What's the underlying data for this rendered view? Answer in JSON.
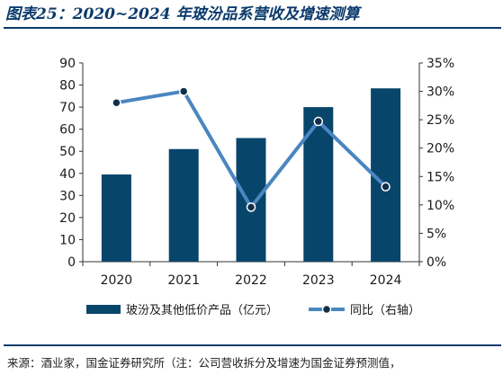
{
  "title": "图表25：2020~2024 年玻汾品系营收及增速测算",
  "source": "来源：酒业家，国金证券研究所（注：公司营收拆分及增速为国金证券预测值，",
  "colors": {
    "bar": "#08456b",
    "line": "#4a86c0",
    "marker": "#0f2f4a",
    "title": "#0b3a6b"
  },
  "chart_data": {
    "type": "bar",
    "categories": [
      "2020",
      "2021",
      "2022",
      "2023",
      "2024"
    ],
    "series": [
      {
        "name": "玻汾及其他低价产品（亿元）",
        "type": "bar",
        "axis": "left",
        "values": [
          39.5,
          51,
          56,
          70,
          78.5
        ]
      },
      {
        "name": "同比（右轴）",
        "type": "line",
        "axis": "right",
        "values": [
          28.0,
          30.0,
          9.6,
          24.7,
          13.2
        ]
      }
    ],
    "y_left": {
      "min": 0,
      "max": 90,
      "step": 10,
      "ticks": [
        "0",
        "10",
        "20",
        "30",
        "40",
        "50",
        "60",
        "70",
        "80",
        "90"
      ]
    },
    "y_right": {
      "min": 0,
      "max": 35,
      "step": 5,
      "ticks": [
        "0%",
        "5%",
        "10%",
        "15%",
        "20%",
        "25%",
        "30%",
        "35%"
      ]
    },
    "grid": false,
    "legend": "bottom"
  }
}
